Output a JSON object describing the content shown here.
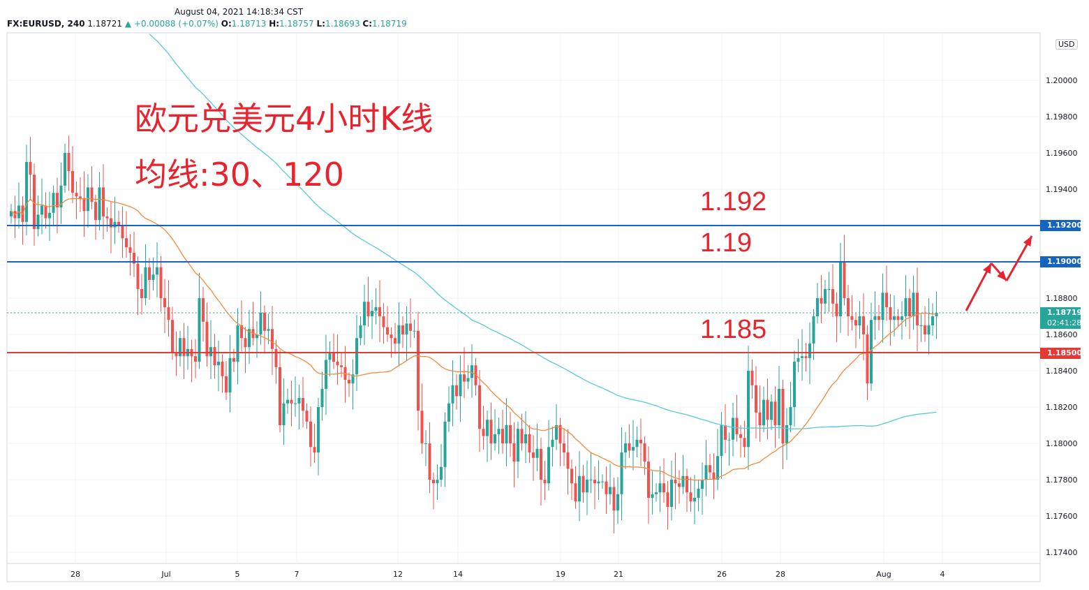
{
  "header": {
    "datetime": "August 04, 2021 14:18:34 CST",
    "symbol": "FX:EURUSD, 240",
    "last": "1.18721",
    "change": "▲ +0.00088 (+0.07%)",
    "o_label": "O:",
    "o_value": "1.18713",
    "h_label": "H:",
    "h_value": "1.18757",
    "l_label": "L:",
    "l_value": "1.18693",
    "c_label": "C:",
    "c_value": "1.18719"
  },
  "currency_button": "USD",
  "annotations": {
    "title_line1": "欧元兑美元4小时K线",
    "title_line2": "均线:30、120",
    "level_1192": "1.192",
    "level_119": "1.19",
    "level_1185": "1.185"
  },
  "price_tags": {
    "r1192": "1.19200",
    "r119": "1.19000",
    "last": "1.18719",
    "countdown": "02:41:28",
    "s1185": "1.18500"
  },
  "colors": {
    "up": "#26a69a",
    "down": "#ef5350",
    "ma30": "#f48a3c",
    "ma120": "#56c9da",
    "resistance": "#1565c0",
    "support": "#e53935",
    "annotation": "#e8232d"
  },
  "chart_data": {
    "type": "candlestick",
    "timeframe": "240",
    "y_axis": {
      "ticks": [
        "1.20000",
        "1.19800",
        "1.19600",
        "1.19400",
        "1.19200",
        "1.19000",
        "1.18800",
        "1.18600",
        "1.18400",
        "1.18200",
        "1.18000",
        "1.17800",
        "1.17600",
        "1.17400"
      ],
      "range": [
        1.1725,
        1.2025
      ]
    },
    "x_axis": {
      "ticks": [
        "28",
        "Jul",
        "5",
        "7",
        "12",
        "14",
        "19",
        "21",
        "26",
        "28",
        "Aug",
        "4"
      ]
    },
    "ohlc_closes": [
      1.1928,
      1.1924,
      1.1931,
      1.1922,
      1.1955,
      1.1948,
      1.1918,
      1.1926,
      1.1931,
      1.1924,
      1.1927,
      1.1938,
      1.193,
      1.1942,
      1.196,
      1.195,
      1.1938,
      1.1936,
      1.1935,
      1.1928,
      1.1941,
      1.1933,
      1.1923,
      1.1941,
      1.1925,
      1.1924,
      1.1919,
      1.1922,
      1.192,
      1.1913,
      1.1908,
      1.1905,
      1.1899,
      1.1885,
      1.188,
      1.1897,
      1.189,
      1.1893,
      1.1897,
      1.188,
      1.1875,
      1.1868,
      1.185,
      1.1848,
      1.1858,
      1.1848,
      1.1852,
      1.1848,
      1.1845,
      1.188,
      1.1867,
      1.1848,
      1.1853,
      1.1843,
      1.1845,
      1.1837,
      1.1828,
      1.1847,
      1.1845,
      1.1865,
      1.1858,
      1.1853,
      1.1863,
      1.1858,
      1.186,
      1.1872,
      1.1862,
      1.1863,
      1.1852,
      1.1842,
      1.181,
      1.1822,
      1.1824,
      1.1822,
      1.1822,
      1.1825,
      1.1818,
      1.1812,
      1.1798,
      1.1795,
      1.182,
      1.183,
      1.1846,
      1.185,
      1.1845,
      1.1843,
      1.1842,
      1.1835,
      1.1833,
      1.1838,
      1.1858,
      1.1865,
      1.1878,
      1.187,
      1.1873,
      1.1875,
      1.187,
      1.1864,
      1.186,
      1.1858,
      1.1855,
      1.1865,
      1.186,
      1.1866,
      1.1862,
      1.1862,
      1.1818,
      1.18,
      1.18,
      1.178,
      1.1778,
      1.178,
      1.1787,
      1.1812,
      1.1822,
      1.1832,
      1.1826,
      1.1838,
      1.1834,
      1.1836,
      1.1843,
      1.1832,
      1.1808,
      1.1804,
      1.1813,
      1.18,
      1.1805,
      1.1808,
      1.18,
      1.181,
      1.18,
      1.179,
      1.1808,
      1.18,
      1.1805,
      1.1795,
      1.1792,
      1.1797,
      1.178,
      1.1778,
      1.1798,
      1.1802,
      1.181,
      1.18,
      1.1795,
      1.1786,
      1.1778,
      1.1768,
      1.1782,
      1.1773,
      1.178,
      1.178,
      1.1778,
      1.1779,
      1.1779,
      1.1772,
      1.1776,
      1.1763,
      1.1772,
      1.1795,
      1.18,
      1.1796,
      1.1798,
      1.1802,
      1.18,
      1.179,
      1.177,
      1.1772,
      1.1773,
      1.1778,
      1.1773,
      1.1765,
      1.178,
      1.1778,
      1.1776,
      1.1782,
      1.1773,
      1.1768,
      1.177,
      1.1775,
      1.178,
      1.1788,
      1.1784,
      1.178,
      1.1793,
      1.181,
      1.1802,
      1.1802,
      1.1814,
      1.1805,
      1.1803,
      1.1798,
      1.184,
      1.1832,
      1.1817,
      1.181,
      1.1824,
      1.1813,
      1.1823,
      1.181,
      1.183,
      1.18,
      1.181,
      1.182,
      1.1845,
      1.1847,
      1.1848,
      1.1847,
      1.1855,
      1.187,
      1.188,
      1.1877,
      1.1885,
      1.1885,
      1.1877,
      1.187,
      1.19,
      1.188,
      1.187,
      1.1868,
      1.1865,
      1.187,
      1.186,
      1.1833,
      1.1868,
      1.187,
      1.1868,
      1.1883,
      1.1875,
      1.1868,
      1.187,
      1.1868,
      1.187,
      1.188,
      1.187,
      1.1883,
      1.1865,
      1.1865,
      1.186,
      1.1865,
      1.187,
      1.1872
    ]
  }
}
